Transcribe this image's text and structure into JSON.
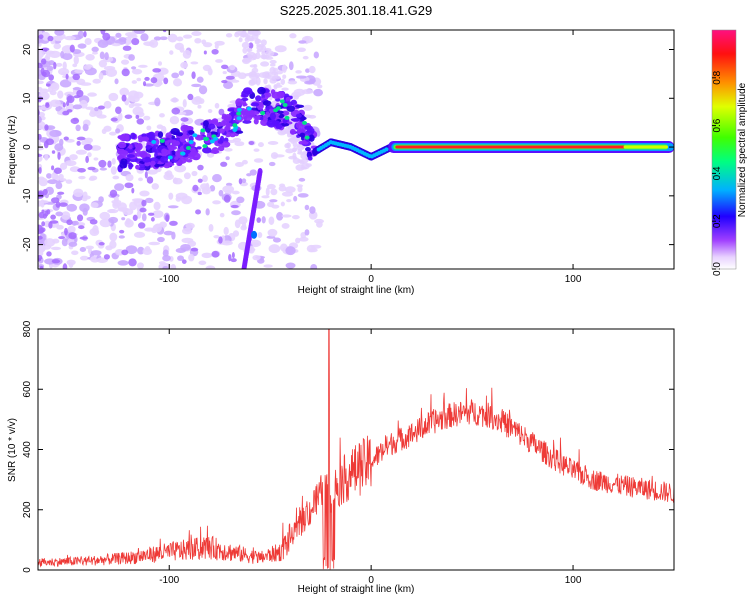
{
  "title": "S225.2025.301.18.41.G29",
  "chart_data": [
    {
      "type": "heatmap",
      "name": "spectrogram",
      "xlabel": "Height of straight line (km)",
      "ylabel": "Frequency (Hz)",
      "xlim": [
        -165,
        150
      ],
      "ylim": [
        -25,
        24
      ],
      "xticks": [
        -100,
        0,
        100
      ],
      "yticks": [
        -20,
        -10,
        0,
        10,
        20
      ],
      "colorbar": {
        "label": "Normalized spectral amplitude",
        "range": [
          0,
          1
        ],
        "ticks": [
          0.0,
          0.2,
          0.4,
          0.6,
          0.8
        ],
        "tick_labels": [
          "0.0",
          "0.2",
          "0.4",
          "0.6",
          "0.8"
        ]
      },
      "main_trace": {
        "description_points": [
          {
            "x": -110,
            "y": -1
          },
          {
            "x": -95,
            "y": 0
          },
          {
            "x": -80,
            "y": 2
          },
          {
            "x": -70,
            "y": 4
          },
          {
            "x": -60,
            "y": 9
          },
          {
            "x": -40,
            "y": 7
          },
          {
            "x": -35,
            "y": 5
          },
          {
            "x": -28,
            "y": -1
          },
          {
            "x": -20,
            "y": 1
          },
          {
            "x": -10,
            "y": 0
          },
          {
            "x": 0,
            "y": -2
          },
          {
            "x": 10,
            "y": 0
          },
          {
            "x": 50,
            "y": 0
          },
          {
            "x": 100,
            "y": 0
          },
          {
            "x": 150,
            "y": -1
          }
        ],
        "bright_segment_x": [
          10,
          150
        ]
      },
      "descending_branch": [
        {
          "x": -55,
          "y": -5
        },
        {
          "x": -58,
          "y": -14
        },
        {
          "x": -63,
          "y": -25
        }
      ]
    },
    {
      "type": "line",
      "name": "snr",
      "xlabel": "Height of straight line (km)",
      "ylabel": "SNR (10 * v/v)",
      "xlim": [
        -165,
        150
      ],
      "ylim": [
        0,
        800
      ],
      "xticks": [
        -100,
        0,
        100
      ],
      "yticks": [
        0,
        200,
        400,
        600,
        800
      ],
      "color": "#ee3a37",
      "envelope": [
        {
          "x": -165,
          "y": 25
        },
        {
          "x": -140,
          "y": 30
        },
        {
          "x": -120,
          "y": 40
        },
        {
          "x": -100,
          "y": 60
        },
        {
          "x": -80,
          "y": 75
        },
        {
          "x": -70,
          "y": 60
        },
        {
          "x": -55,
          "y": 40
        },
        {
          "x": -45,
          "y": 60
        },
        {
          "x": -35,
          "y": 150
        },
        {
          "x": -30,
          "y": 200
        },
        {
          "x": -25,
          "y": 250
        },
        {
          "x": -20,
          "y": 260
        },
        {
          "x": -10,
          "y": 320
        },
        {
          "x": 0,
          "y": 360
        },
        {
          "x": 10,
          "y": 420
        },
        {
          "x": 20,
          "y": 450
        },
        {
          "x": 30,
          "y": 490
        },
        {
          "x": 40,
          "y": 515
        },
        {
          "x": 50,
          "y": 525
        },
        {
          "x": 60,
          "y": 510
        },
        {
          "x": 70,
          "y": 470
        },
        {
          "x": 80,
          "y": 420
        },
        {
          "x": 90,
          "y": 370
        },
        {
          "x": 100,
          "y": 330
        },
        {
          "x": 110,
          "y": 300
        },
        {
          "x": 125,
          "y": 280
        },
        {
          "x": 140,
          "y": 265
        },
        {
          "x": 150,
          "y": 255
        }
      ],
      "spike": {
        "x": -21,
        "y": 800
      }
    }
  ]
}
